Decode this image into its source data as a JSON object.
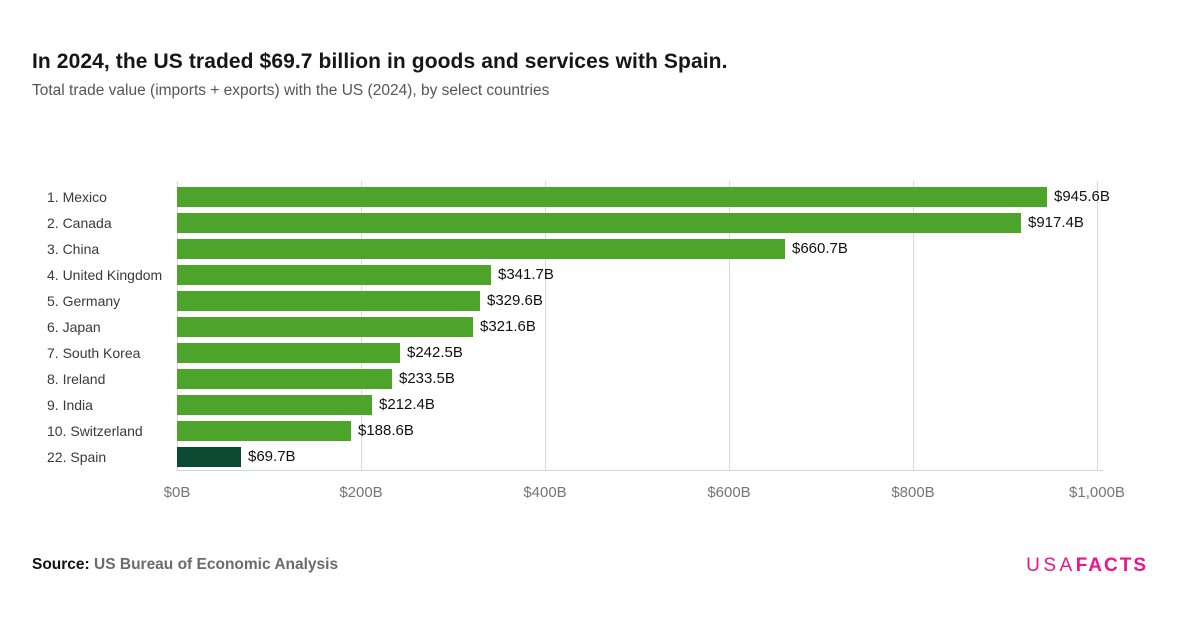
{
  "header": {
    "title": "In 2024, the US traded $69.7 billion in goods and services with Spain.",
    "subtitle": "Total trade value (imports + exports) with the US (2024), by select countries"
  },
  "footer": {
    "source_label": "Source:",
    "source_text": "US Bureau of Economic Analysis",
    "logo_part1": "USA",
    "logo_part2": "FACTS"
  },
  "colors": {
    "bar": "#4CA42A",
    "bar_highlight": "#0D4A33",
    "grid": "#DADADA",
    "axis_text": "#767676",
    "logo_pink": "#F0128C"
  },
  "chart_data": {
    "type": "bar",
    "orientation": "horizontal",
    "title": "In 2024, the US traded $69.7 billion in goods and services with Spain.",
    "subtitle": "Total trade value (imports + exports) with the US (2024), by select countries",
    "categories": [
      "1. Mexico",
      "2. Canada",
      "3. China",
      "4. United Kingdom",
      "5. Germany",
      "6. Japan",
      "7. South Korea",
      "8. Ireland",
      "9. India",
      "10. Switzerland",
      "22. Spain"
    ],
    "values": [
      945.6,
      917.4,
      660.7,
      341.7,
      329.6,
      321.6,
      242.5,
      233.5,
      212.4,
      188.6,
      69.7
    ],
    "value_labels": [
      "$945.6B",
      "$917.4B",
      "$660.7B",
      "$341.7B",
      "$329.6B",
      "$321.6B",
      "$242.5B",
      "$233.5B",
      "$212.4B",
      "$188.6B",
      "$69.7B"
    ],
    "highlight_index": 10,
    "x_ticks": [
      "$0B",
      "$200B",
      "$400B",
      "$600B",
      "$800B",
      "$1,000B"
    ],
    "xlim": [
      0,
      1000
    ],
    "grid": true,
    "legend": "none"
  }
}
